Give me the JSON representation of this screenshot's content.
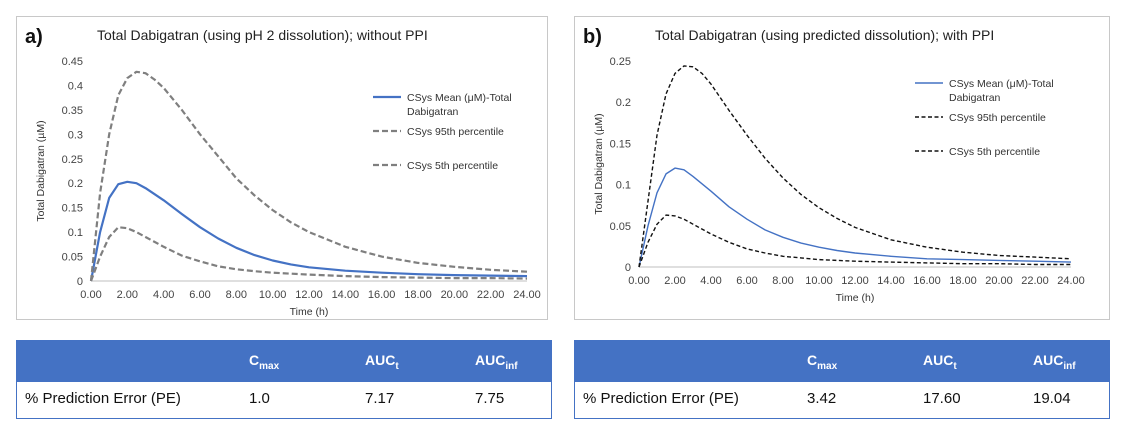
{
  "chart_data": [
    {
      "type": "line",
      "panel_label": "a)",
      "title": "Total Dabigatran (using pH 2 dissolution); without PPI",
      "xlabel": "Time (h)",
      "ylabel": "Total Dabigatran (µM)",
      "xlim": [
        0,
        24
      ],
      "ylim": [
        0,
        0.45
      ],
      "x_ticks": [
        "0.00",
        "2.00",
        "4.00",
        "6.00",
        "8.00",
        "10.00",
        "12.00",
        "14.00",
        "16.00",
        "18.00",
        "20.00",
        "22.00",
        "24.00"
      ],
      "y_ticks": [
        "0",
        "0.05",
        "0.1",
        "0.15",
        "0.2",
        "0.25",
        "0.3",
        "0.35",
        "0.4",
        "0.45"
      ],
      "legend_placement": "right",
      "series": [
        {
          "name": "CSys Mean (μM)-Total Dabigatran",
          "style": "solid",
          "color": "#4472c4",
          "x": [
            0,
            0.5,
            1,
            1.5,
            2,
            2.5,
            3,
            4,
            5,
            6,
            7,
            8,
            9,
            10,
            11,
            12,
            14,
            16,
            18,
            20,
            22,
            24
          ],
          "y": [
            0,
            0.1,
            0.17,
            0.198,
            0.203,
            0.2,
            0.19,
            0.165,
            0.137,
            0.11,
            0.087,
            0.068,
            0.053,
            0.042,
            0.034,
            0.028,
            0.021,
            0.017,
            0.014,
            0.012,
            0.011,
            0.01
          ]
        },
        {
          "name": "CSys 95th percentile",
          "style": "dashed",
          "color": "#7f7f7f",
          "x": [
            0,
            0.5,
            1,
            1.5,
            2,
            2.5,
            3,
            3.5,
            4,
            5,
            6,
            7,
            8,
            9,
            10,
            11,
            12,
            14,
            16,
            18,
            20,
            22,
            24
          ],
          "y": [
            0,
            0.18,
            0.3,
            0.38,
            0.415,
            0.428,
            0.425,
            0.412,
            0.395,
            0.35,
            0.3,
            0.255,
            0.21,
            0.175,
            0.145,
            0.12,
            0.1,
            0.07,
            0.05,
            0.037,
            0.029,
            0.023,
            0.019
          ]
        },
        {
          "name": "CSys 5th percentile",
          "style": "dashed",
          "color": "#7f7f7f",
          "x": [
            0,
            0.5,
            1,
            1.5,
            2,
            2.5,
            3,
            4,
            5,
            6,
            7,
            8,
            9,
            10,
            12,
            14,
            16,
            18,
            20,
            22,
            24
          ],
          "y": [
            0,
            0.05,
            0.09,
            0.11,
            0.108,
            0.1,
            0.09,
            0.07,
            0.052,
            0.04,
            0.03,
            0.024,
            0.02,
            0.017,
            0.013,
            0.01,
            0.008,
            0.007,
            0.006,
            0.006,
            0.005
          ]
        }
      ]
    },
    {
      "type": "line",
      "panel_label": "b)",
      "title": "Total Dabigatran (using predicted dissolution); with PPI",
      "xlabel": "Time (h)",
      "ylabel": "Total Dabigatran (µM)",
      "xlim": [
        0,
        24
      ],
      "ylim": [
        0,
        0.25
      ],
      "x_ticks": [
        "0.00",
        "2.00",
        "4.00",
        "6.00",
        "8.00",
        "10.00",
        "12.00",
        "14.00",
        "16.00",
        "18.00",
        "20.00",
        "22.00",
        "24.00"
      ],
      "y_ticks": [
        "0",
        "0.05",
        "0.1",
        "0.15",
        "0.2",
        "0.25"
      ],
      "legend_placement": "right",
      "series": [
        {
          "name": "CSys Mean (μM)-Total Dabigatran",
          "style": "solid",
          "color": "#4472c4",
          "x": [
            0,
            0.5,
            1,
            1.5,
            2,
            2.5,
            3,
            4,
            5,
            6,
            7,
            8,
            9,
            10,
            11,
            12,
            14,
            16,
            18,
            20,
            22,
            24
          ],
          "y": [
            0,
            0.05,
            0.09,
            0.113,
            0.12,
            0.118,
            0.11,
            0.092,
            0.073,
            0.058,
            0.045,
            0.036,
            0.029,
            0.024,
            0.02,
            0.017,
            0.013,
            0.01,
            0.009,
            0.008,
            0.007,
            0.006
          ]
        },
        {
          "name": "CSys 95th percentile",
          "style": "dashed",
          "color": "#111111",
          "x": [
            0,
            0.5,
            1,
            1.5,
            2,
            2.5,
            3,
            3.5,
            4,
            5,
            6,
            7,
            8,
            9,
            10,
            11,
            12,
            14,
            16,
            18,
            20,
            22,
            24
          ],
          "y": [
            0,
            0.08,
            0.16,
            0.21,
            0.235,
            0.244,
            0.243,
            0.235,
            0.222,
            0.19,
            0.16,
            0.132,
            0.108,
            0.088,
            0.072,
            0.059,
            0.048,
            0.033,
            0.024,
            0.018,
            0.014,
            0.012,
            0.01
          ]
        },
        {
          "name": "CSys 5th percentile",
          "style": "dashed",
          "color": "#111111",
          "x": [
            0,
            0.5,
            1,
            1.5,
            2,
            2.5,
            3,
            4,
            5,
            6,
            7,
            8,
            9,
            10,
            12,
            14,
            16,
            18,
            20,
            22,
            24
          ],
          "y": [
            0,
            0.03,
            0.052,
            0.063,
            0.062,
            0.058,
            0.052,
            0.04,
            0.03,
            0.022,
            0.017,
            0.013,
            0.011,
            0.009,
            0.007,
            0.006,
            0.005,
            0.004,
            0.004,
            0.003,
            0.003
          ]
        }
      ]
    }
  ],
  "tables": [
    {
      "row_label": "% Prediction Error (PE)",
      "columns": [
        {
          "main": "C",
          "sub": "max"
        },
        {
          "main": "AUC",
          "sub": "t"
        },
        {
          "main": "AUC",
          "sub": "inf"
        }
      ],
      "values": [
        "1.0",
        "7.17",
        "7.75"
      ]
    },
    {
      "row_label": "% Prediction Error (PE)",
      "columns": [
        {
          "main": "C",
          "sub": "max"
        },
        {
          "main": "AUC",
          "sub": "t"
        },
        {
          "main": "AUC",
          "sub": "inf"
        }
      ],
      "values": [
        "3.42",
        "17.60",
        "19.04"
      ]
    }
  ]
}
